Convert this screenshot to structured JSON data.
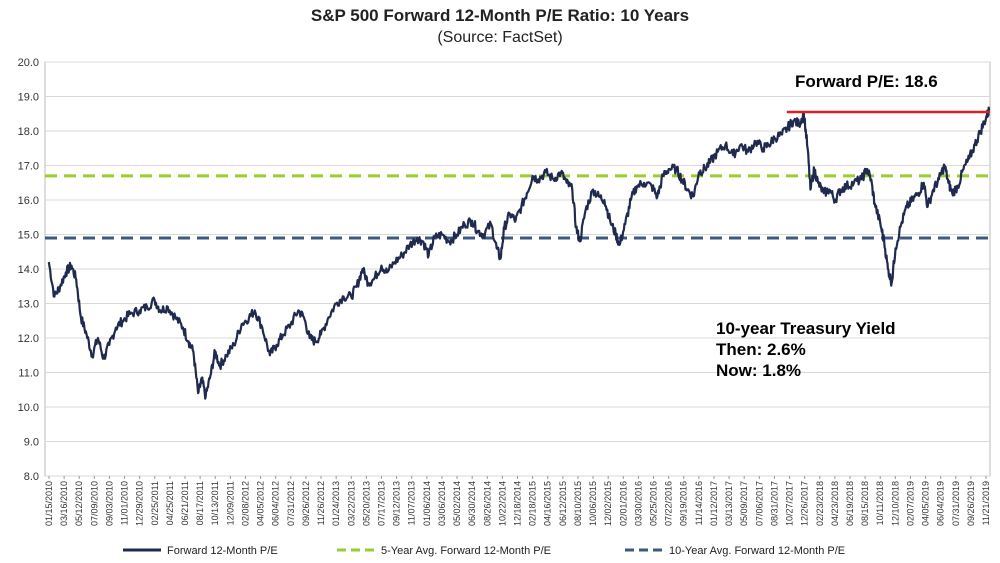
{
  "chart_data": {
    "type": "line",
    "title": "S&P 500 Forward 12-Month P/E Ratio: 10 Years",
    "subtitle": "(Source: FactSet)",
    "ylim": [
      8.0,
      20.0
    ],
    "y_ticks": [
      "20.0",
      "19.0",
      "18.0",
      "17.0",
      "16.0",
      "15.0",
      "14.0",
      "13.0",
      "12.0",
      "11.0",
      "10.0",
      "9.0",
      "8.0"
    ],
    "x_tick_labels": [
      "01/15/2010",
      "03/16/2010",
      "05/12/2010",
      "07/09/2010",
      "09/03/2010",
      "11/01/2010",
      "12/29/2010",
      "02/25/2011",
      "04/25/2011",
      "06/21/2011",
      "08/17/2011",
      "10/13/2011",
      "12/09/2011",
      "02/08/2012",
      "04/05/2012",
      "06/04/2012",
      "07/31/2012",
      "09/26/2012",
      "11/26/2012",
      "01/24/2013",
      "03/22/2013",
      "05/20/2013",
      "07/17/2013",
      "09/12/2013",
      "11/07/2013",
      "01/06/2014",
      "03/06/2014",
      "05/02/2014",
      "06/30/2014",
      "08/26/2014",
      "10/22/2014",
      "12/18/2014",
      "02/18/2015",
      "04/16/2015",
      "06/12/2015",
      "08/10/2015",
      "10/06/2015",
      "12/02/2015",
      "02/01/2016",
      "03/30/2016",
      "05/25/2016",
      "07/22/2016",
      "09/19/2016",
      "11/14/2016",
      "01/12/2017",
      "03/13/2017",
      "05/09/2017",
      "07/06/2017",
      "08/31/2017",
      "10/27/2017",
      "12/26/2017",
      "02/23/2018",
      "04/23/2018",
      "06/19/2018",
      "08/15/2018",
      "10/11/2018",
      "12/10/2018",
      "02/07/2019",
      "04/05/2019",
      "06/04/2019",
      "07/31/2019",
      "09/26/2019",
      "11/21/2019"
    ],
    "x_range": [
      2010.0,
      2020.0
    ],
    "series": [
      {
        "name": "Forward 12-Month P/E",
        "color": "#1f2a4e",
        "points": [
          [
            2010.04,
            14.2
          ],
          [
            2010.1,
            13.2
          ],
          [
            2010.16,
            13.5
          ],
          [
            2010.22,
            13.9
          ],
          [
            2010.28,
            14.1
          ],
          [
            2010.33,
            13.7
          ],
          [
            2010.38,
            12.6
          ],
          [
            2010.44,
            12.1
          ],
          [
            2010.5,
            11.5
          ],
          [
            2010.56,
            12.0
          ],
          [
            2010.62,
            11.4
          ],
          [
            2010.68,
            11.8
          ],
          [
            2010.75,
            12.3
          ],
          [
            2010.82,
            12.5
          ],
          [
            2010.9,
            12.7
          ],
          [
            2011.0,
            12.8
          ],
          [
            2011.08,
            12.9
          ],
          [
            2011.16,
            13.1
          ],
          [
            2011.22,
            12.8
          ],
          [
            2011.3,
            12.9
          ],
          [
            2011.38,
            12.6
          ],
          [
            2011.46,
            12.3
          ],
          [
            2011.52,
            11.9
          ],
          [
            2011.57,
            11.6
          ],
          [
            2011.62,
            10.4
          ],
          [
            2011.66,
            10.8
          ],
          [
            2011.7,
            10.3
          ],
          [
            2011.75,
            10.9
          ],
          [
            2011.8,
            11.6
          ],
          [
            2011.85,
            11.2
          ],
          [
            2011.92,
            11.5
          ],
          [
            2012.0,
            11.8
          ],
          [
            2012.08,
            12.4
          ],
          [
            2012.16,
            12.6
          ],
          [
            2012.22,
            12.8
          ],
          [
            2012.3,
            12.3
          ],
          [
            2012.38,
            11.5
          ],
          [
            2012.45,
            11.8
          ],
          [
            2012.52,
            12.1
          ],
          [
            2012.6,
            12.4
          ],
          [
            2012.68,
            12.8
          ],
          [
            2012.74,
            12.6
          ],
          [
            2012.8,
            12.0
          ],
          [
            2012.86,
            11.9
          ],
          [
            2012.92,
            12.1
          ],
          [
            2013.0,
            12.6
          ],
          [
            2013.08,
            13.0
          ],
          [
            2013.16,
            13.2
          ],
          [
            2013.24,
            13.2
          ],
          [
            2013.3,
            13.5
          ],
          [
            2013.36,
            14.0
          ],
          [
            2013.42,
            13.6
          ],
          [
            2013.48,
            13.7
          ],
          [
            2013.56,
            14.1
          ],
          [
            2013.62,
            13.9
          ],
          [
            2013.7,
            14.2
          ],
          [
            2013.78,
            14.4
          ],
          [
            2013.86,
            14.7
          ],
          [
            2013.94,
            14.9
          ],
          [
            2014.0,
            14.8
          ],
          [
            2014.06,
            14.4
          ],
          [
            2014.12,
            14.9
          ],
          [
            2014.2,
            15.0
          ],
          [
            2014.28,
            14.8
          ],
          [
            2014.36,
            15.0
          ],
          [
            2014.44,
            15.3
          ],
          [
            2014.52,
            15.4
          ],
          [
            2014.58,
            15.1
          ],
          [
            2014.64,
            15.0
          ],
          [
            2014.72,
            15.3
          ],
          [
            2014.78,
            14.6
          ],
          [
            2014.82,
            14.3
          ],
          [
            2014.86,
            15.2
          ],
          [
            2014.92,
            15.6
          ],
          [
            2014.98,
            15.4
          ],
          [
            2015.04,
            15.8
          ],
          [
            2015.1,
            16.2
          ],
          [
            2015.16,
            16.7
          ],
          [
            2015.22,
            16.6
          ],
          [
            2015.3,
            16.8
          ],
          [
            2015.38,
            16.6
          ],
          [
            2015.46,
            16.8
          ],
          [
            2015.52,
            16.5
          ],
          [
            2015.58,
            16.3
          ],
          [
            2015.62,
            15.2
          ],
          [
            2015.66,
            14.8
          ],
          [
            2015.72,
            15.7
          ],
          [
            2015.8,
            16.3
          ],
          [
            2015.86,
            16.1
          ],
          [
            2015.92,
            16.0
          ],
          [
            2015.98,
            15.4
          ],
          [
            2016.04,
            15.0
          ],
          [
            2016.08,
            14.7
          ],
          [
            2016.14,
            15.3
          ],
          [
            2016.2,
            16.0
          ],
          [
            2016.26,
            16.4
          ],
          [
            2016.34,
            16.5
          ],
          [
            2016.42,
            16.4
          ],
          [
            2016.48,
            16.1
          ],
          [
            2016.54,
            16.7
          ],
          [
            2016.6,
            16.9
          ],
          [
            2016.68,
            16.9
          ],
          [
            2016.74,
            16.6
          ],
          [
            2016.8,
            16.3
          ],
          [
            2016.86,
            16.1
          ],
          [
            2016.92,
            16.8
          ],
          [
            2016.98,
            16.9
          ],
          [
            2017.04,
            17.1
          ],
          [
            2017.12,
            17.4
          ],
          [
            2017.2,
            17.6
          ],
          [
            2017.28,
            17.3
          ],
          [
            2017.36,
            17.6
          ],
          [
            2017.44,
            17.4
          ],
          [
            2017.52,
            17.7
          ],
          [
            2017.6,
            17.5
          ],
          [
            2017.66,
            17.6
          ],
          [
            2017.72,
            17.8
          ],
          [
            2017.8,
            17.9
          ],
          [
            2017.86,
            18.1
          ],
          [
            2017.92,
            18.3
          ],
          [
            2017.98,
            18.2
          ],
          [
            2018.03,
            18.5
          ],
          [
            2018.07,
            17.5
          ],
          [
            2018.1,
            16.3
          ],
          [
            2018.14,
            16.9
          ],
          [
            2018.18,
            16.5
          ],
          [
            2018.24,
            16.2
          ],
          [
            2018.3,
            16.3
          ],
          [
            2018.36,
            16.0
          ],
          [
            2018.42,
            16.3
          ],
          [
            2018.48,
            16.4
          ],
          [
            2018.56,
            16.5
          ],
          [
            2018.64,
            16.6
          ],
          [
            2018.7,
            16.9
          ],
          [
            2018.74,
            16.6
          ],
          [
            2018.78,
            15.9
          ],
          [
            2018.84,
            15.3
          ],
          [
            2018.88,
            14.8
          ],
          [
            2018.92,
            14.0
          ],
          [
            2018.96,
            13.6
          ],
          [
            2019.0,
            14.6
          ],
          [
            2019.06,
            15.3
          ],
          [
            2019.12,
            15.8
          ],
          [
            2019.18,
            16.0
          ],
          [
            2019.24,
            16.2
          ],
          [
            2019.3,
            16.5
          ],
          [
            2019.34,
            15.8
          ],
          [
            2019.4,
            16.3
          ],
          [
            2019.46,
            16.6
          ],
          [
            2019.52,
            17.0
          ],
          [
            2019.56,
            16.5
          ],
          [
            2019.6,
            16.2
          ],
          [
            2019.66,
            16.4
          ],
          [
            2019.72,
            16.9
          ],
          [
            2019.78,
            17.2
          ],
          [
            2019.84,
            17.6
          ],
          [
            2019.9,
            18.0
          ],
          [
            2019.96,
            18.4
          ],
          [
            2019.99,
            18.6
          ]
        ]
      },
      {
        "name": "5-Year Avg. Forward 12-Month P/E",
        "color": "#9acd32",
        "dashed": true,
        "value": 16.7
      },
      {
        "name": "10-Year Avg. Forward 12-Month P/E",
        "color": "#3c5a80",
        "dashed": true,
        "value": 14.9
      }
    ],
    "annotations": {
      "current_pe_label": "Forward P/E: 18.6",
      "current_pe_value": 18.55,
      "current_pe_color": "#e02020",
      "current_pe_line_start": 2017.85,
      "treasury_title": "10-year Treasury Yield",
      "treasury_then": "Then: 2.6%",
      "treasury_now": "Now: 1.8%"
    }
  }
}
